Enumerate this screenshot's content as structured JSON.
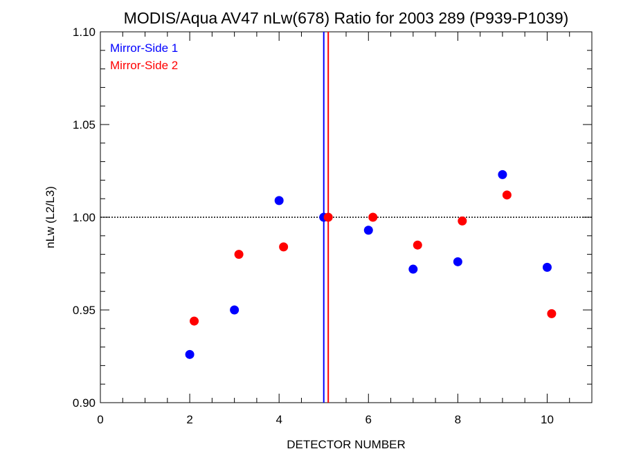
{
  "chart_data": {
    "type": "scatter",
    "title": "MODIS/Aqua AV47 nLw(678) Ratio for 2003 289 (P939-P1039)",
    "xlabel": "DETECTOR NUMBER",
    "ylabel": "nLw (L2/L3)",
    "xlim": [
      0,
      11
    ],
    "ylim": [
      0.9,
      1.1
    ],
    "xticks": [
      0,
      2,
      4,
      6,
      8,
      10
    ],
    "xtick_labels": [
      "0",
      "2",
      "4",
      "6",
      "8",
      "10"
    ],
    "yticks": [
      0.9,
      0.95,
      1.0,
      1.05,
      1.1
    ],
    "ytick_labels": [
      "0.90",
      "0.95",
      "1.00",
      "1.05",
      "1.10"
    ],
    "reference_line_y": 1.0,
    "legend_position": "top-left",
    "series": [
      {
        "name": "Mirror-Side 1",
        "color": "#0000ff",
        "x": [
          2,
          3,
          4,
          5,
          6,
          7,
          8,
          9,
          10
        ],
        "y": [
          0.926,
          0.95,
          1.009,
          1.0,
          0.993,
          0.972,
          0.976,
          1.023,
          0.973
        ],
        "vertical_line_x": 5.0
      },
      {
        "name": "Mirror-Side 2",
        "color": "#ff0000",
        "x": [
          2.1,
          3.1,
          4.1,
          5.1,
          6.1,
          7.1,
          8.1,
          9.1,
          10.1
        ],
        "y": [
          0.944,
          0.98,
          0.984,
          1.0,
          1.0,
          0.985,
          0.998,
          1.012,
          0.948
        ],
        "vertical_line_x": 5.1
      }
    ]
  }
}
